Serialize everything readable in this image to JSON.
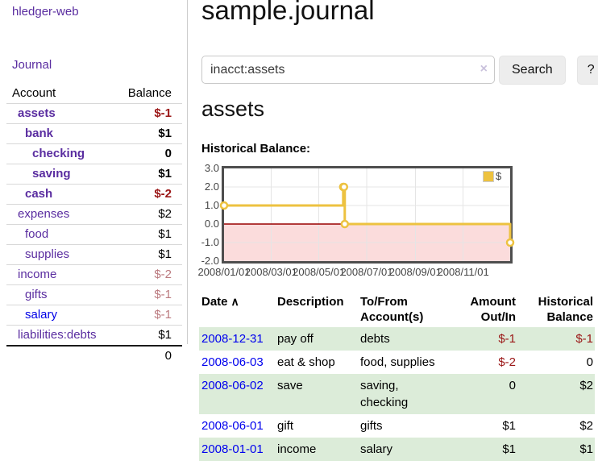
{
  "app": {
    "brand": "hledger-web"
  },
  "sidebar": {
    "journal_label": "Journal",
    "accounts_table": {
      "headers": [
        "Account",
        "Balance"
      ],
      "rows": [
        {
          "name": "assets",
          "indent": 1,
          "bold": true,
          "balance": "$-1",
          "balance_tone": "neg"
        },
        {
          "name": "bank",
          "indent": 2,
          "bold": true,
          "balance": "$1",
          "balance_tone": "pos"
        },
        {
          "name": "checking",
          "indent": 3,
          "bold": true,
          "balance": "0",
          "balance_tone": "pos"
        },
        {
          "name": "saving",
          "indent": 3,
          "bold": true,
          "balance": "$1",
          "balance_tone": "pos"
        },
        {
          "name": "cash",
          "indent": 2,
          "bold": true,
          "balance": "$-2",
          "balance_tone": "neg"
        },
        {
          "name": "expenses",
          "indent": 1,
          "bold": false,
          "balance": "$2",
          "balance_tone": "pos"
        },
        {
          "name": "food",
          "indent": 2,
          "bold": false,
          "balance": "$1",
          "balance_tone": "pos"
        },
        {
          "name": "supplies",
          "indent": 2,
          "bold": false,
          "balance": "$1",
          "balance_tone": "pos"
        },
        {
          "name": "income",
          "indent": 1,
          "bold": false,
          "balance": "$-2",
          "balance_tone": "muted-neg"
        },
        {
          "name": "gifts",
          "indent": 2,
          "bold": false,
          "balance": "$-1",
          "balance_tone": "muted-neg"
        },
        {
          "name": "salary",
          "indent": 2,
          "bold": false,
          "link_tone": "unvisited",
          "balance": "$-1",
          "balance_tone": "muted-neg"
        },
        {
          "name": "liabilities:debts",
          "indent": 1,
          "bold": false,
          "balance": "$1",
          "balance_tone": "pos"
        }
      ],
      "total": "0"
    }
  },
  "main": {
    "title": "sample.journal",
    "search": {
      "value": "inacct:assets",
      "clear_icon": "×",
      "search_label": "Search",
      "help_label": "?"
    },
    "account_heading": "assets",
    "register_table": {
      "headers": {
        "date": "Date",
        "sort_icon": "∧",
        "description": "Description",
        "accounts": "To/From Account(s)",
        "amount": "Amount Out/In",
        "balance": "Historical Balance"
      },
      "rows": [
        {
          "date": "2008-12-31",
          "description": "pay off",
          "accounts": "debts",
          "amount": "$-1",
          "amount_tone": "neg",
          "balance": "$-1",
          "balance_tone": "neg"
        },
        {
          "date": "2008-06-03",
          "description": "eat & shop",
          "accounts": "food, supplies",
          "amount": "$-2",
          "amount_tone": "neg",
          "balance": "0",
          "balance_tone": "pos"
        },
        {
          "date": "2008-06-02",
          "description": "save",
          "accounts": "saving, checking",
          "amount": "0",
          "amount_tone": "pos",
          "balance": "$2",
          "balance_tone": "pos"
        },
        {
          "date": "2008-06-01",
          "description": "gift",
          "accounts": "gifts",
          "amount": "$1",
          "amount_tone": "pos",
          "balance": "$2",
          "balance_tone": "pos"
        },
        {
          "date": "2008-01-01",
          "description": "income",
          "accounts": "salary",
          "amount": "$1",
          "amount_tone": "pos",
          "balance": "$1",
          "balance_tone": "pos"
        }
      ]
    }
  },
  "chart_data": {
    "type": "line",
    "step": true,
    "title": "Historical Balance:",
    "xlim": [
      "2008-01-01",
      "2008-12-31"
    ],
    "ylim": [
      -2,
      3
    ],
    "yticks": [
      3,
      2,
      1,
      0,
      -1,
      -2
    ],
    "ytick_labels": [
      "3.0",
      "2.0",
      "1.0",
      "0.0",
      "-1.0",
      "-2.0"
    ],
    "xticks": [
      "2008-01-01",
      "2008-03-01",
      "2008-05-01",
      "2008-07-01",
      "2008-09-01",
      "2008-11-01"
    ],
    "xtick_labels": [
      "2008/01/01",
      "2008/03/01",
      "2008/05/01",
      "2008/07/01",
      "2008/09/01",
      "2008/11/01"
    ],
    "legend": {
      "label": "$",
      "position": "top-right"
    },
    "series": [
      {
        "name": "$",
        "color": "#edc240",
        "points": [
          {
            "x": "2008-01-01",
            "y": 1
          },
          {
            "x": "2008-06-01",
            "y": 2
          },
          {
            "x": "2008-06-02",
            "y": 2
          },
          {
            "x": "2008-06-03",
            "y": 0
          },
          {
            "x": "2008-12-31",
            "y": -1
          }
        ]
      }
    ],
    "colors": {
      "negative_fill": "#fbdcdc",
      "zero_line": "#990000",
      "grid": "#e5e5e5",
      "border": "#4e4e4e",
      "marker_fill": "#ffffff"
    }
  }
}
